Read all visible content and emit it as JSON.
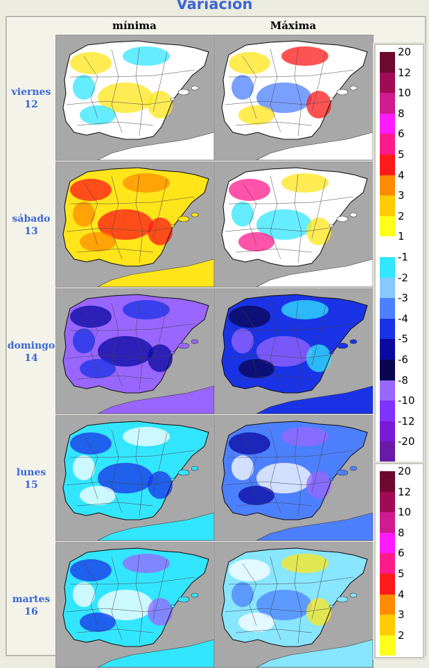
{
  "title": "Variación",
  "columns": [
    "mínima",
    "Máxima"
  ],
  "days": [
    {
      "name": "viernes",
      "num": "12"
    },
    {
      "name": "sábado",
      "num": "13"
    },
    {
      "name": "domingo",
      "num": "14"
    },
    {
      "name": "lunes",
      "num": "15"
    },
    {
      "name": "martes",
      "num": "16"
    }
  ],
  "legend_top": [
    {
      "label": "20",
      "color": "#6e0a2e"
    },
    {
      "label": "12",
      "color": "#a10b56"
    },
    {
      "label": "10",
      "color": "#d01a8d"
    },
    {
      "label": "8",
      "color": "#ff1aff"
    },
    {
      "label": "6",
      "color": "#ff1a8c"
    },
    {
      "label": "5",
      "color": "#ff1a1a"
    },
    {
      "label": "4",
      "color": "#ff8c00"
    },
    {
      "label": "3",
      "color": "#ffcc00"
    },
    {
      "label": "2",
      "color": "#ffff1a"
    },
    {
      "label": "1",
      "color": "#ffffff"
    },
    {
      "label": "-1",
      "color": "#33e6ff"
    },
    {
      "label": "-2",
      "color": "#88c8ff"
    },
    {
      "label": "-3",
      "color": "#4d80ff"
    },
    {
      "label": "-4",
      "color": "#1a33e6"
    },
    {
      "label": "-5",
      "color": "#0a0aa0"
    },
    {
      "label": "-6",
      "color": "#0a0550"
    },
    {
      "label": "-8",
      "color": "#9966ff"
    },
    {
      "label": "-10",
      "color": "#8033ff"
    },
    {
      "label": "-12",
      "color": "#7a1ad9"
    },
    {
      "label": "-20",
      "color": "#6a1aa8"
    }
  ],
  "legend_bottom": [
    {
      "label": "20",
      "color": "#6e0a2e"
    },
    {
      "label": "12",
      "color": "#a10b56"
    },
    {
      "label": "10",
      "color": "#d01a8d"
    },
    {
      "label": "8",
      "color": "#ff1aff"
    },
    {
      "label": "6",
      "color": "#ff1a8c"
    },
    {
      "label": "5",
      "color": "#ff1a1a"
    },
    {
      "label": "4",
      "color": "#ff8c00"
    },
    {
      "label": "3",
      "color": "#ffcc00"
    },
    {
      "label": "2",
      "color": "#ffff1a"
    }
  ],
  "map_colors": {
    "sea": "#a8a8a8",
    "land_default": "#ffffff",
    "maps": [
      [
        "#ffffff",
        "#ffffff"
      ],
      [
        "#ffe51a",
        "#ffffff"
      ],
      [
        "#9966ff",
        "#1a33e6"
      ],
      [
        "#33e6ff",
        "#4d80ff"
      ],
      [
        "#33e6ff",
        "#88e6ff"
      ]
    ],
    "accents": [
      [
        [
          "#ffe51a",
          "#33e6ff"
        ],
        [
          "#ffe51a",
          "#ff1a1a",
          "#4d80ff"
        ]
      ],
      [
        [
          "#ff1a1a",
          "#ff8c00"
        ],
        [
          "#ff1a8c",
          "#ffe51a",
          "#33e6ff"
        ]
      ],
      [
        [
          "#0a0aa0",
          "#1a33e6"
        ],
        [
          "#0a0550",
          "#33e6ff",
          "#9966ff"
        ]
      ],
      [
        [
          "#1a33e6",
          "#ffffff"
        ],
        [
          "#0a0aa0",
          "#9966ff",
          "#ffffff"
        ]
      ],
      [
        [
          "#1a33e6",
          "#9966ff",
          "#ffffff"
        ],
        [
          "#ffffff",
          "#ffe51a",
          "#4d80ff"
        ]
      ]
    ]
  }
}
